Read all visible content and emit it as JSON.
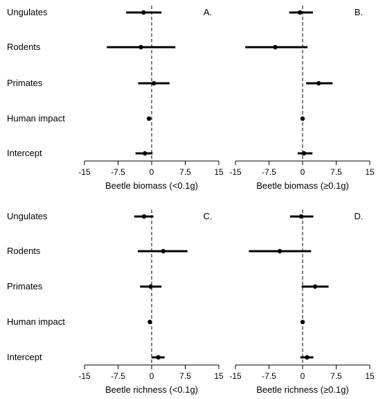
{
  "chart_data": [
    {
      "type": "forest",
      "panel_label": "A.",
      "xlabel": "Beetle biomass (<0.1g)",
      "xlim": [
        -15,
        15
      ],
      "xticks": [
        "-15",
        "-7.5",
        "0",
        "7.5",
        "15"
      ],
      "reference_line": 0,
      "categories": [
        "Ungulates",
        "Rodents",
        "Primates",
        "Human impact",
        "Intercept"
      ],
      "estimates": [
        -1.8,
        -2.4,
        0.5,
        -0.6,
        -1.5
      ],
      "lower": [
        -5.7,
        -10.0,
        -3.0,
        -0.9,
        -3.6
      ],
      "upper": [
        2.2,
        5.3,
        4.0,
        -0.3,
        0.2
      ]
    },
    {
      "type": "forest",
      "panel_label": "B.",
      "xlabel": "Beetle biomass (≥0.1g)",
      "xlim": [
        -15,
        15
      ],
      "xticks": [
        "-15",
        "-7.5",
        "0",
        "7.5",
        "15"
      ],
      "reference_line": 0,
      "categories": [
        "Ungulates",
        "Rodents",
        "Primates",
        "Human impact",
        "Intercept"
      ],
      "estimates": [
        -0.6,
        -6.1,
        3.6,
        0.0,
        0.3
      ],
      "lower": [
        -3.0,
        -12.8,
        0.8,
        -0.2,
        -1.1
      ],
      "upper": [
        2.3,
        1.1,
        6.7,
        0.3,
        2.2
      ]
    },
    {
      "type": "forest",
      "panel_label": "C.",
      "xlabel": "Beetle richness (<0.1g)",
      "xlim": [
        -15,
        15
      ],
      "xticks": [
        "-15",
        "-7.5",
        "0",
        "7.5",
        "15"
      ],
      "reference_line": 0,
      "categories": [
        "Ungulates",
        "Rodents",
        "Primates",
        "Human impact",
        "Intercept"
      ],
      "estimates": [
        -1.7,
        2.6,
        -0.2,
        -0.4,
        1.5
      ],
      "lower": [
        -3.9,
        -3.1,
        -2.6,
        -0.6,
        0.0
      ],
      "upper": [
        0.4,
        8.0,
        2.2,
        -0.2,
        2.9
      ]
    },
    {
      "type": "forest",
      "panel_label": "D.",
      "xlabel": "Beetle richness (≥0.1g)",
      "xlim": [
        -15,
        15
      ],
      "xticks": [
        "-15",
        "-7.5",
        "0",
        "7.5",
        "15"
      ],
      "reference_line": 0,
      "categories": [
        "Ungulates",
        "Rodents",
        "Primates",
        "Human impact",
        "Intercept"
      ],
      "estimates": [
        -0.3,
        -5.1,
        2.8,
        0.0,
        1.0
      ],
      "lower": [
        -2.8,
        -12.0,
        -0.2,
        -0.2,
        -0.5
      ],
      "upper": [
        2.4,
        1.9,
        5.8,
        0.2,
        2.4
      ]
    }
  ]
}
